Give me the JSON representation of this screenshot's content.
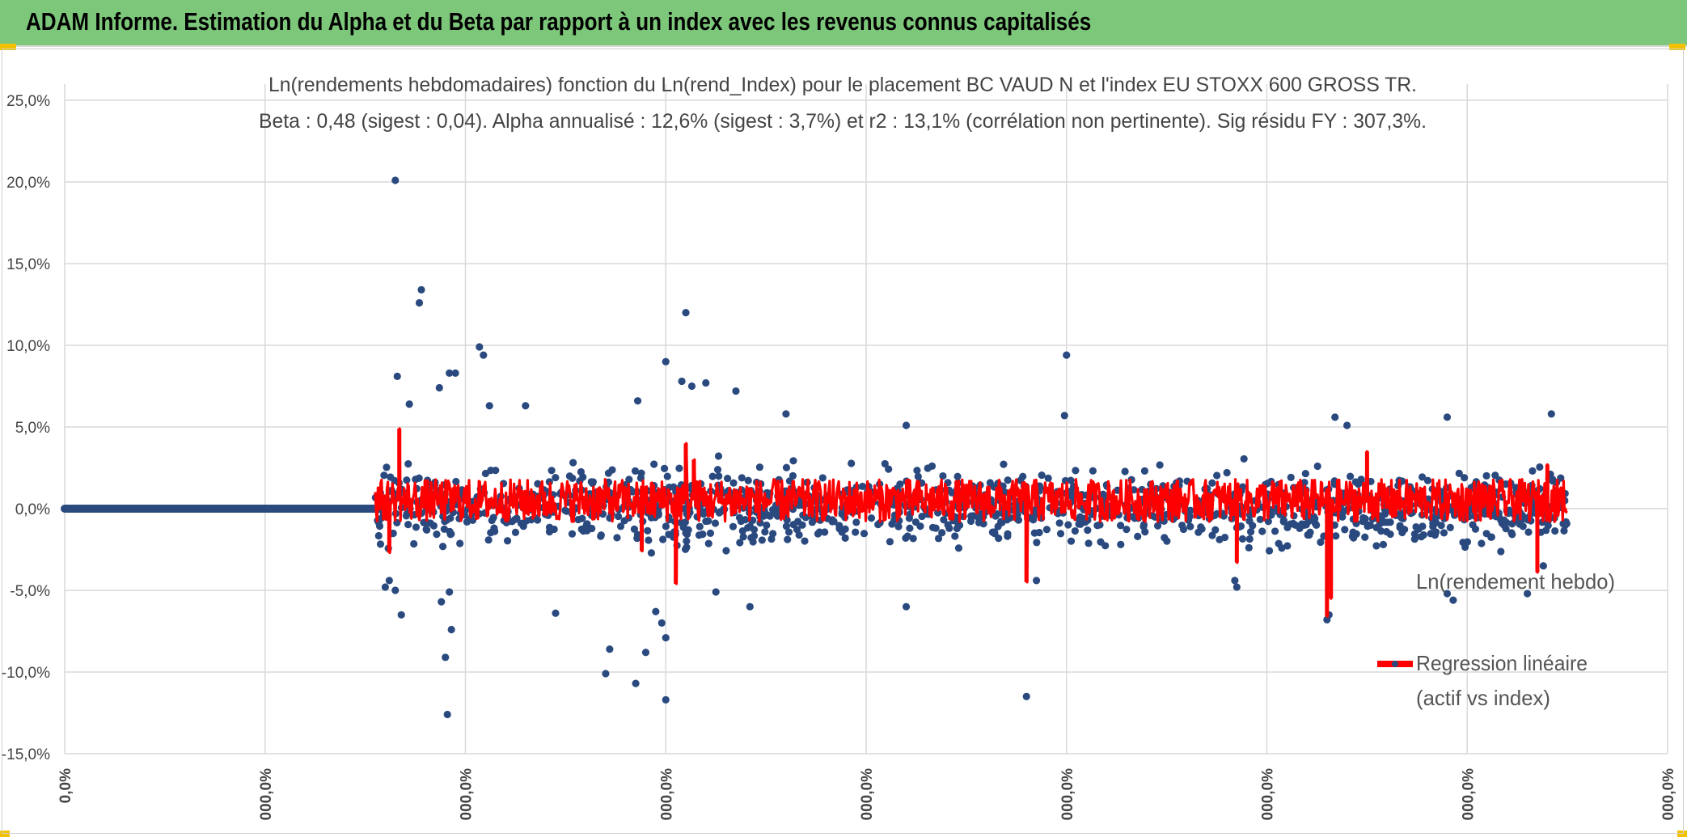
{
  "header": {
    "title": "ADAM Informe. Estimation du Alpha et du Beta par rapport à un index avec les revenus connus capitalisés",
    "bar_color": "#7dc77a",
    "corner_color": "#f2c200"
  },
  "chart_data": {
    "type": "scatter",
    "title_line1": "Ln(rendements hebdomadaires) fonction du Ln(rend_Index) pour le placement BC VAUD N et l'index EU STOXX 600 GROSS TR.",
    "title_line2": "Beta : 0,48 (sigest : 0,04). Alpha annualisé : 12,6% (sigest : 3,7%) et r2 : 13,1% (corrélation non pertinente). Sig résidu FY : 307,3%.",
    "ylim": [
      -15,
      25
    ],
    "xlim": [
      0,
      8
    ],
    "y_ticks": [
      "25,0%",
      "20,0%",
      "15,0%",
      "10,0%",
      "5,0%",
      "0,0%",
      "-5,0%",
      "-10,0%",
      "-15,0%"
    ],
    "x_ticks": [
      "0,0%",
      "000,0%",
      "000,0%",
      "000,0%",
      "000,0%",
      "000,0%",
      "000,0%",
      "000,0%",
      "000,0%"
    ],
    "series": [
      {
        "name": "Ln(rendement hebdo)",
        "color": "#2a4a7f"
      },
      {
        "name": "Regression linéaire (actif vs index)",
        "color": "#ff0000"
      }
    ],
    "flat_segment": {
      "x_start": 0.0,
      "x_end": 1.55,
      "y": 0.0
    },
    "data_x_range": [
      1.55,
      7.5
    ],
    "outliers": [
      {
        "x": 1.65,
        "y": 20.1
      },
      {
        "x": 1.78,
        "y": 13.4
      },
      {
        "x": 1.77,
        "y": 12.6
      },
      {
        "x": 1.72,
        "y": 6.4
      },
      {
        "x": 1.66,
        "y": 8.1
      },
      {
        "x": 1.92,
        "y": 8.3
      },
      {
        "x": 1.95,
        "y": 8.3
      },
      {
        "x": 2.07,
        "y": 9.9
      },
      {
        "x": 2.09,
        "y": 9.4
      },
      {
        "x": 1.87,
        "y": 7.4
      },
      {
        "x": 2.12,
        "y": 6.3
      },
      {
        "x": 2.3,
        "y": 6.3
      },
      {
        "x": 3.1,
        "y": 12.0
      },
      {
        "x": 3.0,
        "y": 9.0
      },
      {
        "x": 3.08,
        "y": 7.8
      },
      {
        "x": 3.13,
        "y": 7.5
      },
      {
        "x": 3.2,
        "y": 7.7
      },
      {
        "x": 3.35,
        "y": 7.2
      },
      {
        "x": 2.86,
        "y": 6.6
      },
      {
        "x": 3.6,
        "y": 5.8
      },
      {
        "x": 4.2,
        "y": 5.1
      },
      {
        "x": 5.0,
        "y": 9.4
      },
      {
        "x": 4.99,
        "y": 5.7
      },
      {
        "x": 6.34,
        "y": 5.6
      },
      {
        "x": 6.4,
        "y": 5.1
      },
      {
        "x": 6.9,
        "y": 5.6
      },
      {
        "x": 7.42,
        "y": 5.8
      },
      {
        "x": 1.62,
        "y": -4.4
      },
      {
        "x": 1.65,
        "y": -5.0
      },
      {
        "x": 1.68,
        "y": -6.5
      },
      {
        "x": 1.6,
        "y": -4.8
      },
      {
        "x": 1.92,
        "y": -5.1
      },
      {
        "x": 1.93,
        "y": -7.4
      },
      {
        "x": 1.9,
        "y": -9.1
      },
      {
        "x": 1.91,
        "y": -12.6
      },
      {
        "x": 1.88,
        "y": -5.7
      },
      {
        "x": 2.45,
        "y": -6.4
      },
      {
        "x": 2.7,
        "y": -10.1
      },
      {
        "x": 2.72,
        "y": -8.6
      },
      {
        "x": 2.85,
        "y": -10.7
      },
      {
        "x": 2.9,
        "y": -8.8
      },
      {
        "x": 3.0,
        "y": -11.7
      },
      {
        "x": 3.0,
        "y": -7.9
      },
      {
        "x": 2.98,
        "y": -7.0
      },
      {
        "x": 2.95,
        "y": -6.3
      },
      {
        "x": 3.25,
        "y": -5.1
      },
      {
        "x": 3.42,
        "y": -6.0
      },
      {
        "x": 4.2,
        "y": -6.0
      },
      {
        "x": 4.8,
        "y": -11.5
      },
      {
        "x": 4.85,
        "y": -4.4
      },
      {
        "x": 5.85,
        "y": -4.8
      },
      {
        "x": 5.84,
        "y": -4.4
      },
      {
        "x": 6.3,
        "y": -6.8
      },
      {
        "x": 6.31,
        "y": -6.5
      },
      {
        "x": 6.9,
        "y": -5.2
      },
      {
        "x": 6.93,
        "y": -5.6
      },
      {
        "x": 7.3,
        "y": -5.2
      },
      {
        "x": 7.38,
        "y": -3.5
      }
    ],
    "regression_spikes": [
      {
        "x": 1.67,
        "y": 4.9
      },
      {
        "x": 1.62,
        "y": -2.7
      },
      {
        "x": 2.88,
        "y": -2.6
      },
      {
        "x": 3.05,
        "y": -4.6
      },
      {
        "x": 3.1,
        "y": 4.0
      },
      {
        "x": 3.14,
        "y": 3.0
      },
      {
        "x": 4.8,
        "y": -4.5
      },
      {
        "x": 5.85,
        "y": -3.3
      },
      {
        "x": 6.3,
        "y": -6.6
      },
      {
        "x": 6.32,
        "y": -5.5
      },
      {
        "x": 6.5,
        "y": 3.5
      },
      {
        "x": 7.35,
        "y": -3.9
      },
      {
        "x": 7.4,
        "y": 2.7
      }
    ]
  }
}
